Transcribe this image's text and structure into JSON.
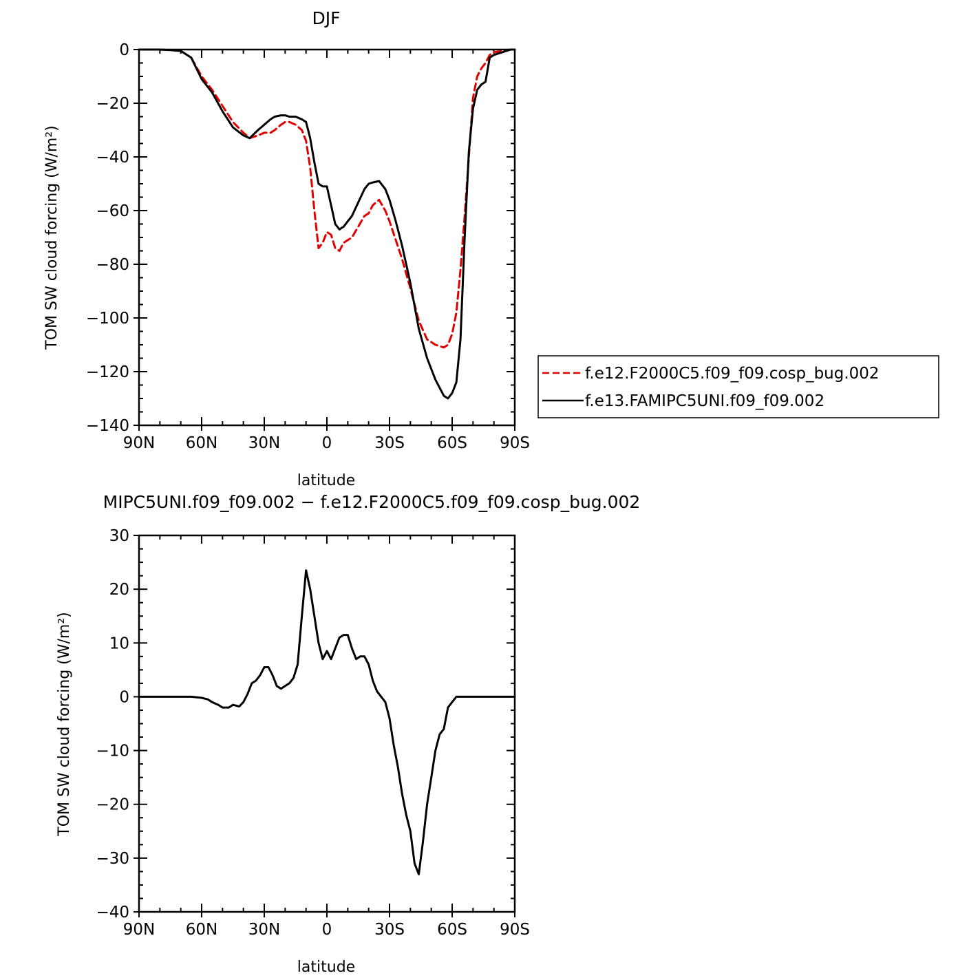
{
  "chart_data": [
    {
      "type": "line",
      "title": "DJF",
      "xlabel": "latitude",
      "ylabel": "TOM SW cloud forcing (W/m²)",
      "xlim": [
        90,
        -90
      ],
      "ylim": [
        -140,
        0
      ],
      "x_ticks": [
        {
          "value": 90,
          "label": "90N"
        },
        {
          "value": 60,
          "label": "60N"
        },
        {
          "value": 30,
          "label": "30N"
        },
        {
          "value": 0,
          "label": "0"
        },
        {
          "value": -30,
          "label": "30S"
        },
        {
          "value": -60,
          "label": "60S"
        },
        {
          "value": -90,
          "label": "90S"
        }
      ],
      "y_ticks": [
        {
          "value": 0,
          "label": "0"
        },
        {
          "value": -20,
          "label": "−20"
        },
        {
          "value": -40,
          "label": "−40"
        },
        {
          "value": -60,
          "label": "−60"
        },
        {
          "value": -80,
          "label": "−80"
        },
        {
          "value": -100,
          "label": "−100"
        },
        {
          "value": -120,
          "label": "−120"
        },
        {
          "value": -140,
          "label": "−140"
        }
      ],
      "legend_position": "right",
      "series": [
        {
          "name": "f.e12.F2000C5.f09_f09.cosp_bug.002",
          "color": "#e00000",
          "dash": true,
          "x": [
            90,
            85,
            80,
            75,
            70,
            65,
            60,
            55,
            50,
            45,
            40,
            37,
            33,
            30,
            27,
            25,
            22,
            20,
            18,
            15,
            12,
            10,
            8,
            6,
            4,
            2,
            0,
            -2,
            -4,
            -6,
            -8,
            -10,
            -12,
            -15,
            -18,
            -20,
            -22,
            -25,
            -28,
            -30,
            -33,
            -36,
            -40,
            -44,
            -48,
            -52,
            -56,
            -58,
            -60,
            -62,
            -64,
            -66,
            -68,
            -70,
            -72,
            -74,
            -76,
            -78,
            -80,
            -84,
            -88,
            -90
          ],
          "y": [
            0,
            0,
            0,
            -0.2,
            -0.5,
            -3,
            -10,
            -15,
            -21,
            -27,
            -31,
            -33,
            -32,
            -31,
            -31,
            -30,
            -28,
            -27,
            -27,
            -28,
            -30,
            -34,
            -44,
            -60,
            -74,
            -72,
            -68,
            -69,
            -74,
            -75,
            -72,
            -71,
            -70,
            -66,
            -62,
            -61,
            -58,
            -56,
            -60,
            -64,
            -71,
            -78,
            -89,
            -101,
            -108,
            -110,
            -111,
            -110,
            -106,
            -98,
            -82,
            -62,
            -40,
            -18,
            -10,
            -7,
            -5,
            -2,
            -1,
            -0.5,
            0,
            0
          ]
        },
        {
          "name": "f.e13.FAMIPC5UNI.f09_f09.002",
          "color": "#000000",
          "dash": false,
          "x": [
            90,
            85,
            80,
            75,
            70,
            65,
            60,
            55,
            50,
            45,
            40,
            37,
            33,
            30,
            27,
            25,
            22,
            20,
            18,
            15,
            12,
            10,
            8,
            6,
            4,
            2,
            0,
            -2,
            -4,
            -6,
            -8,
            -10,
            -12,
            -15,
            -18,
            -20,
            -22,
            -25,
            -28,
            -30,
            -33,
            -36,
            -40,
            -44,
            -48,
            -52,
            -56,
            -58,
            -60,
            -62,
            -64,
            -66,
            -68,
            -70,
            -72,
            -74,
            -76,
            -78,
            -80,
            -84,
            -88,
            -90
          ],
          "y": [
            0,
            0,
            0,
            -0.2,
            -0.5,
            -3,
            -11,
            -16,
            -23,
            -29,
            -32,
            -33,
            -30,
            -28,
            -26,
            -25,
            -24.5,
            -24.5,
            -25,
            -25,
            -26,
            -27,
            -33,
            -42,
            -50,
            -51,
            -51,
            -58,
            -65,
            -67,
            -66,
            -64,
            -62,
            -57,
            -52,
            -50,
            -49.5,
            -49,
            -52,
            -56,
            -64,
            -73,
            -87,
            -104,
            -115,
            -123,
            -129,
            -130,
            -128,
            -124,
            -108,
            -70,
            -38,
            -22,
            -15,
            -13,
            -12,
            -3,
            -2,
            -1,
            0,
            0
          ]
        }
      ]
    },
    {
      "type": "line",
      "title": "MIPC5UNI.f09_f09.002 − f.e12.F2000C5.f09_f09.cosp_bug.002",
      "xlabel": "latitude",
      "ylabel": "TOM SW cloud forcing (W/m²)",
      "xlim": [
        90,
        -90
      ],
      "ylim": [
        -40,
        30
      ],
      "x_ticks": [
        {
          "value": 90,
          "label": "90N"
        },
        {
          "value": 60,
          "label": "60N"
        },
        {
          "value": 30,
          "label": "30N"
        },
        {
          "value": 0,
          "label": "0"
        },
        {
          "value": -30,
          "label": "30S"
        },
        {
          "value": -60,
          "label": "60S"
        },
        {
          "value": -90,
          "label": "90S"
        }
      ],
      "y_ticks": [
        {
          "value": 30,
          "label": "30"
        },
        {
          "value": 20,
          "label": "20"
        },
        {
          "value": 10,
          "label": "10"
        },
        {
          "value": 0,
          "label": "0"
        },
        {
          "value": -10,
          "label": "−10"
        },
        {
          "value": -20,
          "label": "−20"
        },
        {
          "value": -30,
          "label": "−30"
        },
        {
          "value": -40,
          "label": "−40"
        }
      ],
      "series": [
        {
          "color": "#000000",
          "dash": false,
          "x": [
            90,
            80,
            70,
            65,
            60,
            57,
            55,
            52,
            50,
            47,
            45,
            42,
            40,
            38,
            36,
            34,
            32,
            30,
            28,
            26,
            24,
            22,
            20,
            18,
            16,
            14,
            12,
            10,
            8,
            6,
            4,
            2,
            0,
            -2,
            -4,
            -6,
            -8,
            -10,
            -12,
            -14,
            -16,
            -18,
            -20,
            -22,
            -24,
            -26,
            -28,
            -30,
            -32,
            -34,
            -36,
            -38,
            -40,
            -42,
            -44,
            -46,
            -48,
            -50,
            -52,
            -54,
            -56,
            -58,
            -60,
            -62,
            -64,
            -65,
            -66,
            -68,
            -70,
            -72,
            -74,
            -76,
            -78,
            -80,
            -84,
            -86,
            -88,
            -90
          ],
          "y": [
            0,
            0,
            0,
            0,
            -0.2,
            -0.5,
            -1,
            -1.5,
            -2,
            -2,
            -1.5,
            -1.8,
            -1,
            0.5,
            2.5,
            3,
            4,
            5.5,
            5.5,
            4,
            2,
            1.5,
            2,
            2.5,
            3.5,
            6,
            15,
            23.5,
            20,
            15,
            10,
            7,
            8.5,
            7,
            9,
            11,
            11.5,
            11.5,
            9,
            7,
            7.5,
            7.5,
            6,
            3,
            1,
            0,
            -1,
            -4,
            -9,
            -13,
            -18,
            -22,
            -25,
            -31,
            -33,
            -27,
            -20,
            -15,
            -10,
            -7,
            -6,
            -2,
            -1,
            0,
            0,
            0,
            0,
            0,
            0,
            0,
            0,
            0,
            0,
            0,
            0,
            0,
            0,
            0
          ]
        }
      ]
    }
  ]
}
